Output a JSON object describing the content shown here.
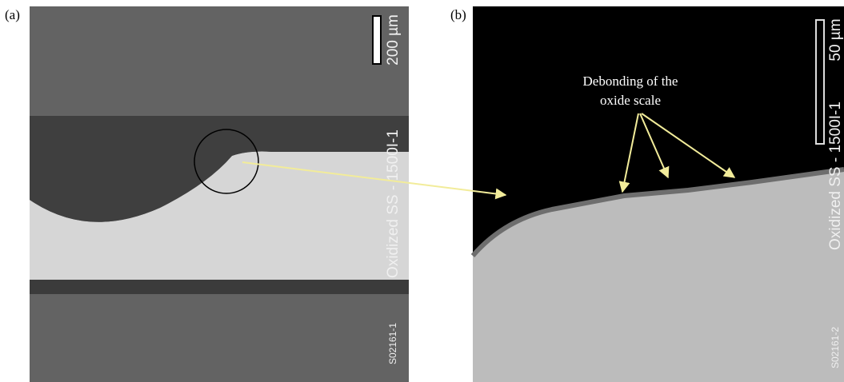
{
  "panels": [
    {
      "label": "(a)",
      "scale_bar": "200 µm",
      "sample": "Oxidized SS - 1500I-1",
      "image_id": "S02161-1"
    },
    {
      "label": "(b)",
      "scale_bar": "50 µm",
      "sample": "Oxidized SS - 1500I-1",
      "image_id": "S02161-2",
      "annotation": [
        "Debonding of the",
        "oxide scale"
      ]
    }
  ]
}
